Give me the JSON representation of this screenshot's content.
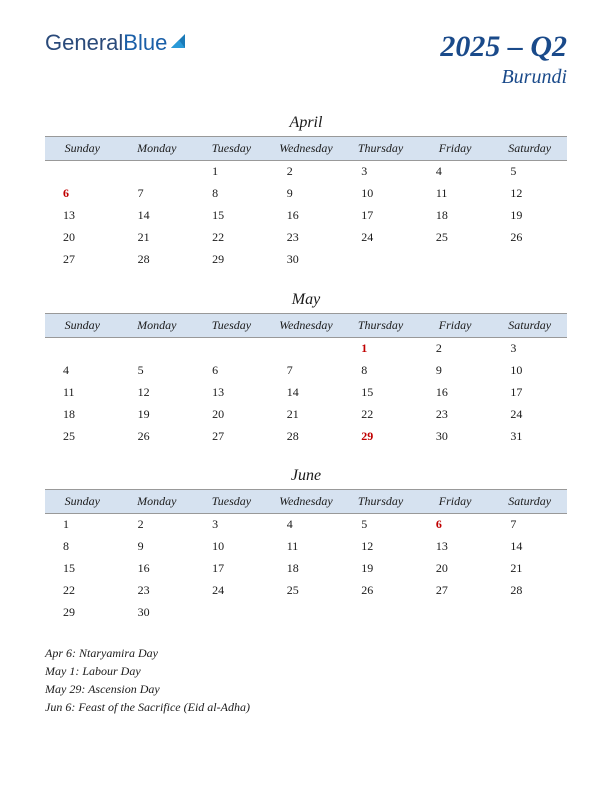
{
  "logo": {
    "part1": "General",
    "part2": "Blue"
  },
  "header": {
    "quarter": "2025 – Q2",
    "country": "Burundi"
  },
  "day_headers": [
    "Sunday",
    "Monday",
    "Tuesday",
    "Wednesday",
    "Thursday",
    "Friday",
    "Saturday"
  ],
  "colors": {
    "header_bg": "#d6e2f0",
    "title_color": "#1a4a8a",
    "holiday_color": "#c00000",
    "text_color": "#1a1a1a",
    "background": "#ffffff"
  },
  "months": [
    {
      "name": "April",
      "weeks": [
        [
          "",
          "",
          "1",
          "2",
          "3",
          "4",
          "5"
        ],
        [
          "6",
          "7",
          "8",
          "9",
          "10",
          "11",
          "12"
        ],
        [
          "13",
          "14",
          "15",
          "16",
          "17",
          "18",
          "19"
        ],
        [
          "20",
          "21",
          "22",
          "23",
          "24",
          "25",
          "26"
        ],
        [
          "27",
          "28",
          "29",
          "30",
          "",
          "",
          ""
        ]
      ],
      "holiday_cells": [
        [
          1,
          0
        ]
      ]
    },
    {
      "name": "May",
      "weeks": [
        [
          "",
          "",
          "",
          "",
          "1",
          "2",
          "3"
        ],
        [
          "4",
          "5",
          "6",
          "7",
          "8",
          "9",
          "10"
        ],
        [
          "11",
          "12",
          "13",
          "14",
          "15",
          "16",
          "17"
        ],
        [
          "18",
          "19",
          "20",
          "21",
          "22",
          "23",
          "24"
        ],
        [
          "25",
          "26",
          "27",
          "28",
          "29",
          "30",
          "31"
        ]
      ],
      "holiday_cells": [
        [
          0,
          4
        ],
        [
          4,
          4
        ]
      ]
    },
    {
      "name": "June",
      "weeks": [
        [
          "1",
          "2",
          "3",
          "4",
          "5",
          "6",
          "7"
        ],
        [
          "8",
          "9",
          "10",
          "11",
          "12",
          "13",
          "14"
        ],
        [
          "15",
          "16",
          "17",
          "18",
          "19",
          "20",
          "21"
        ],
        [
          "22",
          "23",
          "24",
          "25",
          "26",
          "27",
          "28"
        ],
        [
          "29",
          "30",
          "",
          "",
          "",
          "",
          ""
        ]
      ],
      "holiday_cells": [
        [
          0,
          5
        ]
      ]
    }
  ],
  "holidays": [
    "Apr 6: Ntaryamira Day",
    "May 1: Labour Day",
    "May 29: Ascension Day",
    "Jun 6: Feast of the Sacrifice (Eid al-Adha)"
  ]
}
